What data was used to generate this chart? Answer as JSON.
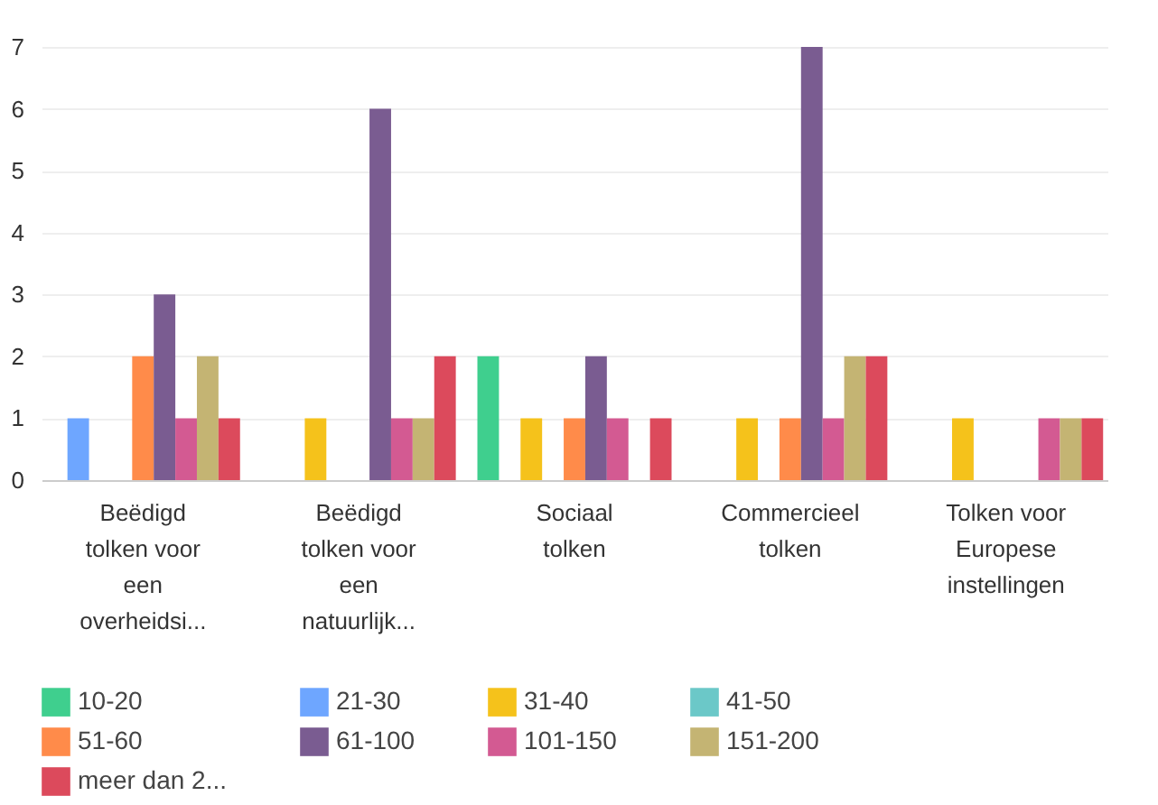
{
  "chart_data": {
    "type": "bar",
    "categories": [
      "Beëdigd tolken voor een overheidsi...",
      "Beëdigd tolken voor een natuurlijk...",
      "Sociaal tolken",
      "Commercieel tolken",
      "Tolken voor Europese instellingen"
    ],
    "series": [
      {
        "name": "10-20",
        "color": "#3fcf8e",
        "values": [
          0,
          0,
          2,
          0,
          0
        ]
      },
      {
        "name": "21-30",
        "color": "#6ea6ff",
        "values": [
          1,
          0,
          0,
          0,
          0
        ]
      },
      {
        "name": "31-40",
        "color": "#f5c21b",
        "values": [
          0,
          1,
          1,
          1,
          1
        ]
      },
      {
        "name": "41-50",
        "color": "#6bc8c8",
        "values": [
          0,
          0,
          0,
          0,
          0
        ]
      },
      {
        "name": "51-60",
        "color": "#ff8b4a",
        "values": [
          2,
          0,
          1,
          1,
          0
        ]
      },
      {
        "name": "61-100",
        "color": "#7a5c91",
        "values": [
          3,
          6,
          2,
          7,
          0
        ]
      },
      {
        "name": "101-150",
        "color": "#d35a92",
        "values": [
          1,
          1,
          1,
          1,
          1
        ]
      },
      {
        "name": "151-200",
        "color": "#c4b473",
        "values": [
          2,
          1,
          0,
          2,
          1
        ]
      },
      {
        "name": "meer dan 2...",
        "color": "#dc4a5c",
        "values": [
          1,
          2,
          1,
          2,
          1
        ]
      }
    ],
    "ylim": [
      0,
      7
    ],
    "yticks": [
      0,
      1,
      2,
      3,
      4,
      5,
      6,
      7
    ],
    "grid": "y",
    "legend": "bottom"
  }
}
